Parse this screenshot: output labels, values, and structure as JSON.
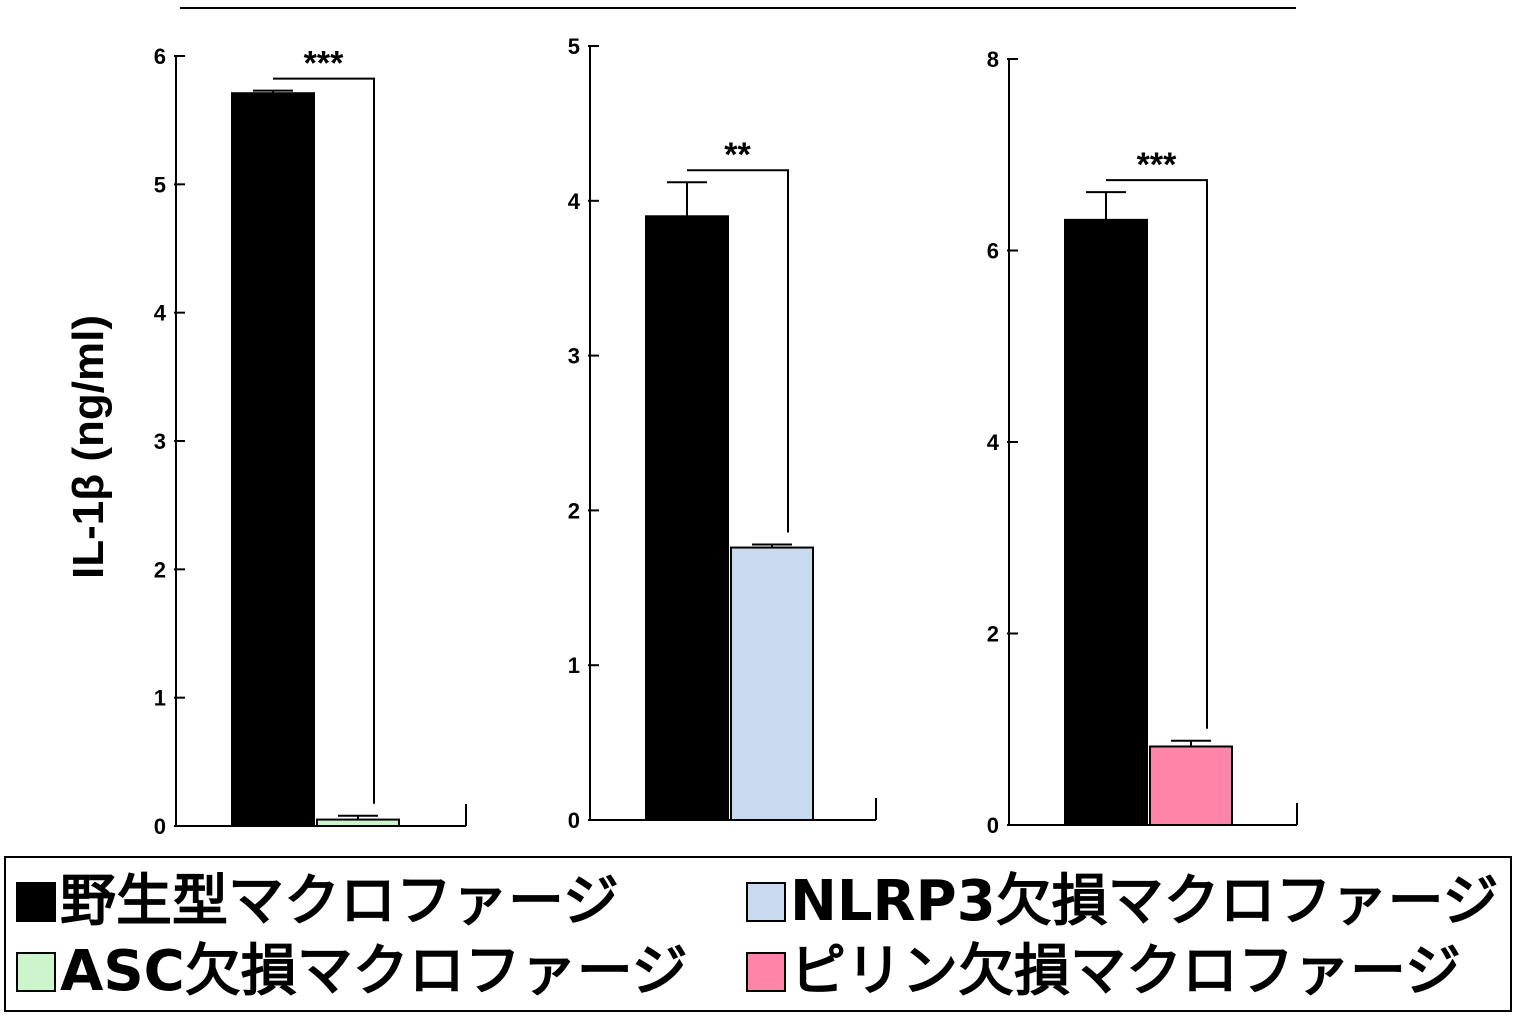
{
  "ylabel": "IL-1β (ng/ml)",
  "colors": {
    "wildtype": "#000000",
    "asc": "#ccf5cc",
    "nlrp3": "#c9d9ef",
    "pyrin": "#ff85a8"
  },
  "chart_data": [
    {
      "type": "bar",
      "ylim": [
        0,
        6
      ],
      "ticks": [
        "0",
        "1",
        "2",
        "3",
        "4",
        "5",
        "6"
      ],
      "tick_values": [
        0,
        1,
        2,
        3,
        4,
        5,
        6
      ],
      "bars": [
        {
          "group": "wildtype",
          "value": 5.71,
          "error": 0.02
        },
        {
          "group": "asc",
          "value": 0.05,
          "error": 0.03
        }
      ],
      "significance": "***"
    },
    {
      "type": "bar",
      "ylim": [
        0,
        5
      ],
      "ticks": [
        "0",
        "1",
        "2",
        "3",
        "4",
        "5"
      ],
      "tick_values": [
        0,
        1,
        2,
        3,
        4,
        5
      ],
      "bars": [
        {
          "group": "wildtype",
          "value": 3.9,
          "error": 0.22
        },
        {
          "group": "nlrp3",
          "value": 1.76,
          "error": 0.02
        }
      ],
      "significance": "**"
    },
    {
      "type": "bar",
      "ylim": [
        0,
        8
      ],
      "ticks": [
        "0",
        "2",
        "4",
        "6",
        "8"
      ],
      "tick_values": [
        0,
        2,
        4,
        6,
        8
      ],
      "bars": [
        {
          "group": "wildtype",
          "value": 6.32,
          "error": 0.29
        },
        {
          "group": "pyrin",
          "value": 0.82,
          "error": 0.06
        }
      ],
      "significance": "***"
    }
  ],
  "legend": {
    "wildtype": "野生型マクロファージ",
    "nlrp3": "NLRP3欠損マクロファージ",
    "asc": "ASC欠損マクロファージ",
    "pyrin": "ピリン欠損マクロファージ"
  }
}
